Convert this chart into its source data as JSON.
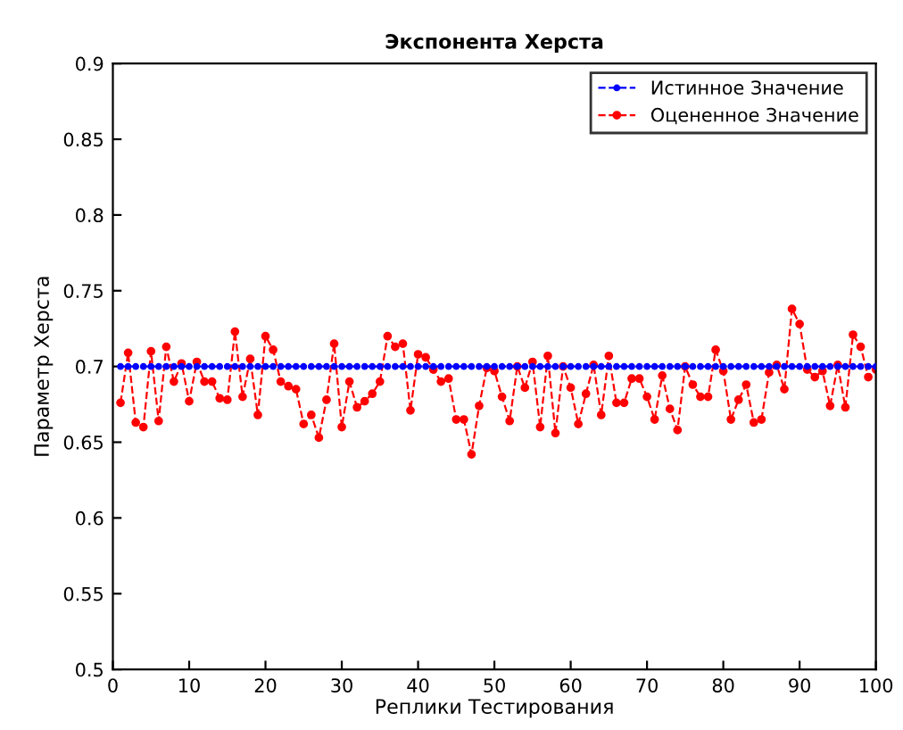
{
  "chart_data": {
    "type": "line",
    "title": "Экспонента Херста",
    "xlabel": "Реплики Тестирования",
    "ylabel": "Параметр Херста",
    "x": [
      1,
      2,
      3,
      4,
      5,
      6,
      7,
      8,
      9,
      10,
      11,
      12,
      13,
      14,
      15,
      16,
      17,
      18,
      19,
      20,
      21,
      22,
      23,
      24,
      25,
      26,
      27,
      28,
      29,
      30,
      31,
      32,
      33,
      34,
      35,
      36,
      37,
      38,
      39,
      40,
      41,
      42,
      43,
      44,
      45,
      46,
      47,
      48,
      49,
      50,
      51,
      52,
      53,
      54,
      55,
      56,
      57,
      58,
      59,
      60,
      61,
      62,
      63,
      64,
      65,
      66,
      67,
      68,
      69,
      70,
      71,
      72,
      73,
      74,
      75,
      76,
      77,
      78,
      79,
      80,
      81,
      82,
      83,
      84,
      85,
      86,
      87,
      88,
      89,
      90,
      91,
      92,
      93,
      94,
      95,
      96,
      97,
      98,
      99,
      100
    ],
    "series": [
      {
        "name": "Истинное Значение",
        "color": "#0000ff",
        "values": [
          0.7,
          0.7,
          0.7,
          0.7,
          0.7,
          0.7,
          0.7,
          0.7,
          0.7,
          0.7,
          0.7,
          0.7,
          0.7,
          0.7,
          0.7,
          0.7,
          0.7,
          0.7,
          0.7,
          0.7,
          0.7,
          0.7,
          0.7,
          0.7,
          0.7,
          0.7,
          0.7,
          0.7,
          0.7,
          0.7,
          0.7,
          0.7,
          0.7,
          0.7,
          0.7,
          0.7,
          0.7,
          0.7,
          0.7,
          0.7,
          0.7,
          0.7,
          0.7,
          0.7,
          0.7,
          0.7,
          0.7,
          0.7,
          0.7,
          0.7,
          0.7,
          0.7,
          0.7,
          0.7,
          0.7,
          0.7,
          0.7,
          0.7,
          0.7,
          0.7,
          0.7,
          0.7,
          0.7,
          0.7,
          0.7,
          0.7,
          0.7,
          0.7,
          0.7,
          0.7,
          0.7,
          0.7,
          0.7,
          0.7,
          0.7,
          0.7,
          0.7,
          0.7,
          0.7,
          0.7,
          0.7,
          0.7,
          0.7,
          0.7,
          0.7,
          0.7,
          0.7,
          0.7,
          0.7,
          0.7,
          0.7,
          0.7,
          0.7,
          0.7,
          0.7,
          0.7,
          0.7,
          0.7,
          0.7,
          0.7
        ]
      },
      {
        "name": "Оцененное Значение",
        "color": "#ff0000",
        "values": [
          0.676,
          0.709,
          0.663,
          0.66,
          0.71,
          0.664,
          0.713,
          0.69,
          0.702,
          0.677,
          0.703,
          0.69,
          0.69,
          0.679,
          0.678,
          0.723,
          0.68,
          0.705,
          0.668,
          0.72,
          0.711,
          0.69,
          0.687,
          0.685,
          0.662,
          0.668,
          0.653,
          0.678,
          0.715,
          0.66,
          0.69,
          0.673,
          0.677,
          0.682,
          0.69,
          0.72,
          0.713,
          0.715,
          0.671,
          0.708,
          0.706,
          0.698,
          0.69,
          0.692,
          0.665,
          0.665,
          0.642,
          0.674,
          0.699,
          0.697,
          0.68,
          0.664,
          0.7,
          0.686,
          0.703,
          0.66,
          0.707,
          0.656,
          0.7,
          0.686,
          0.662,
          0.682,
          0.701,
          0.668,
          0.707,
          0.676,
          0.676,
          0.692,
          0.692,
          0.68,
          0.665,
          0.694,
          0.672,
          0.658,
          0.7,
          0.688,
          0.68,
          0.68,
          0.711,
          0.697,
          0.665,
          0.678,
          0.688,
          0.663,
          0.665,
          0.696,
          0.701,
          0.685,
          0.738,
          0.728,
          0.698,
          0.693,
          0.697,
          0.674,
          0.701,
          0.673,
          0.721,
          0.713,
          0.693,
          0.698
        ]
      }
    ],
    "xlim": [
      0,
      100
    ],
    "xticks": [
      0,
      10,
      20,
      30,
      40,
      50,
      60,
      70,
      80,
      90,
      100
    ],
    "ylim": [
      0.5,
      0.9
    ],
    "yticks": [
      0.5,
      0.55,
      0.6,
      0.65,
      0.7,
      0.75,
      0.8,
      0.85,
      0.9
    ],
    "grid": false,
    "legend": "top right",
    "marker": "circle",
    "line_style": "dashed"
  }
}
